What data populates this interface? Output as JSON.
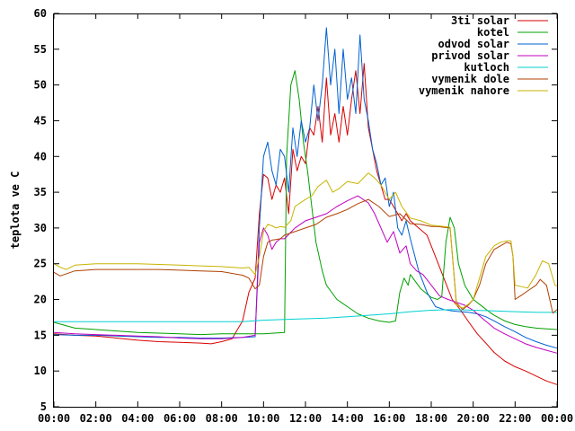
{
  "chart_data": {
    "type": "line",
    "ylabel": "teplota ve C",
    "xlabel": "",
    "title": "",
    "xlim": [
      0,
      24
    ],
    "ylim": [
      5,
      60
    ],
    "grid": false,
    "legend_position": "top-right",
    "x_ticks": [
      "00:00",
      "02:00",
      "04:00",
      "06:00",
      "08:00",
      "10:00",
      "12:00",
      "14:00",
      "16:00",
      "18:00",
      "20:00",
      "22:00",
      "00:00"
    ],
    "y_ticks": [
      "5",
      "10",
      "15",
      "20",
      "25",
      "30",
      "35",
      "40",
      "45",
      "50",
      "55",
      "60"
    ],
    "series": [
      {
        "name": "3ti solar",
        "color": "#d90000",
        "x": [
          0,
          1,
          2,
          3,
          4,
          5,
          6,
          7,
          7.5,
          8,
          8.5,
          9,
          9.3,
          9.6,
          9.8,
          10,
          10.2,
          10.4,
          10.6,
          10.8,
          11,
          11.2,
          11.4,
          11.6,
          11.8,
          12,
          12.2,
          12.4,
          12.6,
          12.8,
          13,
          13.2,
          13.4,
          13.6,
          13.8,
          14,
          14.2,
          14.4,
          14.6,
          14.8,
          15,
          15.2,
          15.4,
          15.6,
          15.8,
          16,
          16.2,
          16.4,
          16.6,
          16.8,
          17,
          17.4,
          17.8,
          18.2,
          18.6,
          19,
          19.4,
          19.8,
          20.2,
          20.6,
          21,
          21.5,
          22,
          22.5,
          23,
          23.5,
          24
        ],
        "y": [
          15.2,
          15,
          14.9,
          14.6,
          14.3,
          14.1,
          14,
          13.9,
          13.8,
          14.1,
          14.5,
          17,
          21,
          23,
          32,
          37.5,
          37,
          34,
          36,
          35,
          37,
          32,
          41,
          38,
          40,
          39,
          44,
          43,
          47,
          42,
          51,
          43,
          46,
          42,
          47,
          43,
          48,
          52,
          46,
          53,
          44,
          41,
          38,
          36,
          34,
          34,
          33,
          32,
          31,
          32,
          31,
          30,
          29,
          26,
          23,
          20,
          18.5,
          16.8,
          15.2,
          13.9,
          12.6,
          11.4,
          10.6,
          10,
          9.3,
          8.6,
          8.1
        ]
      },
      {
        "name": "kotel",
        "color": "#00a000",
        "x": [
          0,
          1,
          2,
          3,
          4,
          5,
          6,
          7,
          8,
          9,
          10,
          10.5,
          11,
          11.1,
          11.3,
          11.5,
          11.7,
          11.9,
          12.1,
          12.3,
          12.5,
          12.8,
          13,
          13.5,
          14,
          14.5,
          15,
          15.5,
          16,
          16.3,
          16.5,
          16.7,
          16.9,
          17,
          17.5,
          18,
          18.3,
          18.5,
          18.7,
          18.9,
          19.1,
          19.3,
          19.6,
          20,
          20.4,
          20.8,
          21,
          21.5,
          22,
          22.5,
          23,
          23.5,
          24
        ],
        "y": [
          16.8,
          16,
          15.8,
          15.6,
          15.4,
          15.3,
          15.2,
          15.1,
          15.2,
          15.2,
          15.2,
          15.3,
          15.4,
          40,
          50,
          52,
          48,
          42,
          38,
          33,
          28,
          24,
          22,
          20,
          19,
          18,
          17.4,
          17,
          16.8,
          17,
          21,
          23,
          22,
          23.5,
          21.5,
          20.3,
          20,
          20.4,
          28,
          31.5,
          30,
          25,
          22,
          20,
          19.1,
          18.2,
          17.8,
          17,
          16.5,
          16.2,
          16,
          15.9,
          15.8
        ]
      },
      {
        "name": "odvod solar",
        "color": "#0060d0",
        "x": [
          0,
          1,
          2,
          3,
          4,
          5,
          6,
          7,
          8,
          9,
          9.6,
          9.8,
          10,
          10.2,
          10.4,
          10.6,
          10.8,
          11,
          11.2,
          11.4,
          11.6,
          11.8,
          12,
          12.2,
          12.4,
          12.6,
          12.8,
          13,
          13.2,
          13.4,
          13.6,
          13.8,
          14,
          14.2,
          14.4,
          14.6,
          14.8,
          15,
          15.2,
          15.4,
          15.6,
          15.8,
          16,
          16.2,
          16.4,
          16.6,
          16.8,
          17,
          17.4,
          17.8,
          18.2,
          18.6,
          19,
          19.4,
          19.8,
          20.2,
          20.6,
          21,
          21.5,
          22,
          22.5,
          23,
          23.5,
          24
        ],
        "y": [
          15.1,
          15,
          15,
          14.9,
          14.8,
          14.7,
          14.7,
          14.6,
          14.6,
          14.7,
          14.8,
          30,
          40,
          42,
          38,
          36,
          41,
          40,
          35,
          44,
          40,
          45,
          42,
          44,
          50,
          45,
          50,
          58,
          50,
          55,
          46,
          55,
          48,
          51,
          46,
          57,
          48,
          45,
          41,
          39,
          36,
          37,
          33,
          35,
          30,
          29,
          31,
          28.5,
          24,
          21,
          19,
          18.6,
          18.4,
          18.3,
          18.2,
          18,
          17.6,
          17,
          16.2,
          15.5,
          14.7,
          14.1,
          13.6,
          13.2
        ]
      },
      {
        "name": "privod solar",
        "color": "#c000c0",
        "x": [
          0,
          1,
          2,
          3,
          4,
          5,
          6,
          7,
          8,
          9,
          9.6,
          9.8,
          10,
          10.2,
          10.4,
          10.6,
          10.8,
          11,
          11.5,
          12,
          12.5,
          13,
          13.5,
          14,
          14.5,
          15,
          15.3,
          15.6,
          15.9,
          16.2,
          16.5,
          16.8,
          17,
          17.3,
          17.6,
          18,
          18.4,
          18.8,
          19.2,
          19.6,
          20,
          20.5,
          21,
          21.5,
          22,
          22.5,
          23,
          23.5,
          24
        ],
        "y": [
          15.4,
          15.2,
          15.1,
          15,
          14.9,
          14.8,
          14.6,
          14.5,
          14.5,
          14.7,
          15,
          28,
          30,
          29,
          27,
          28,
          28.5,
          28.5,
          30,
          31,
          31.5,
          32,
          33,
          33.8,
          34.5,
          33.5,
          32,
          30,
          28,
          29.5,
          26.5,
          27.5,
          25,
          24,
          23.5,
          22,
          20.5,
          20,
          19.6,
          19.2,
          18.5,
          17.2,
          16,
          15.2,
          14.5,
          13.8,
          13.3,
          12.9,
          12.5
        ]
      },
      {
        "name": "kutloch",
        "color": "#00d0d0",
        "x": [
          0,
          1,
          2,
          3,
          4,
          5,
          6,
          7,
          8,
          9,
          10,
          11,
          12,
          13,
          14,
          15,
          16,
          17,
          18,
          19,
          20,
          21,
          22,
          23,
          24
        ],
        "y": [
          16.9,
          16.9,
          16.9,
          16.9,
          16.9,
          16.9,
          16.9,
          16.9,
          16.9,
          16.9,
          17.1,
          17.2,
          17.3,
          17.4,
          17.6,
          17.8,
          18,
          18.3,
          18.5,
          18.6,
          18.5,
          18.4,
          18.3,
          18.2,
          18.2
        ]
      },
      {
        "name": "vymenik dole",
        "color": "#b04000",
        "x": [
          0,
          0.3,
          1,
          2,
          3,
          4,
          5,
          6,
          7,
          8,
          9,
          9.3,
          9.6,
          9.8,
          10,
          10.2,
          10.4,
          10.6,
          10.8,
          11,
          11.5,
          12,
          12.5,
          13,
          13.5,
          14,
          14.5,
          15,
          15.5,
          16,
          16.5,
          17,
          17.5,
          18,
          18.3,
          18.6,
          18.9,
          19.2,
          19.5,
          19.8,
          20,
          20.3,
          20.6,
          21,
          21.3,
          21.6,
          21.8,
          21.9,
          22,
          22.3,
          22.6,
          23,
          23.2,
          23.5,
          23.8,
          24
        ],
        "y": [
          23.8,
          23.3,
          24,
          24.2,
          24.2,
          24.2,
          24.2,
          24.1,
          24,
          23.9,
          23.4,
          23,
          21.5,
          22,
          26,
          28,
          28.3,
          28.4,
          28.5,
          29,
          29.5,
          30,
          30.5,
          31.5,
          32,
          32.6,
          33.4,
          34,
          33,
          31.6,
          32,
          30.6,
          30.5,
          30.2,
          30.2,
          30.1,
          30,
          19.5,
          18.6,
          19.3,
          20,
          22,
          25,
          27,
          27.5,
          28,
          27.8,
          26,
          20,
          20.6,
          21.2,
          22,
          22.8,
          22,
          18.1,
          18.6
        ]
      },
      {
        "name": "vymenik nahore",
        "color": "#c8b400",
        "x": [
          0,
          0.3,
          0.6,
          1,
          2,
          3,
          4,
          5,
          6,
          7,
          8,
          9,
          9.3,
          9.6,
          9.8,
          10,
          10.2,
          10.4,
          10.6,
          10.8,
          11,
          11.3,
          11.5,
          12,
          12.3,
          12.6,
          13,
          13.3,
          13.6,
          14,
          14.5,
          15,
          15.3,
          15.6,
          16,
          16.3,
          16.6,
          17,
          17.5,
          18,
          18.3,
          18.6,
          18.9,
          19.2,
          19.5,
          19.8,
          20,
          20.3,
          20.6,
          21,
          21.3,
          21.6,
          21.8,
          21.9,
          22,
          22.3,
          22.6,
          23,
          23.3,
          23.6,
          23.9,
          24
        ],
        "y": [
          25,
          24.5,
          24.2,
          24.8,
          25,
          25,
          25,
          24.9,
          24.8,
          24.7,
          24.6,
          24.4,
          24.5,
          23.5,
          26,
          29.5,
          30.5,
          30.3,
          30,
          30.2,
          30.1,
          31,
          33,
          34,
          34.5,
          35.8,
          36.7,
          35,
          35.5,
          36.5,
          36.2,
          37.7,
          37,
          36,
          34,
          35,
          33,
          31.4,
          31,
          30.4,
          30.3,
          30.2,
          30.1,
          19.2,
          18.8,
          19.4,
          20,
          23,
          26,
          27.5,
          28,
          28.2,
          28.2,
          26,
          22,
          21.8,
          21.6,
          23.5,
          25.4,
          25,
          22,
          21.9
        ]
      }
    ]
  }
}
